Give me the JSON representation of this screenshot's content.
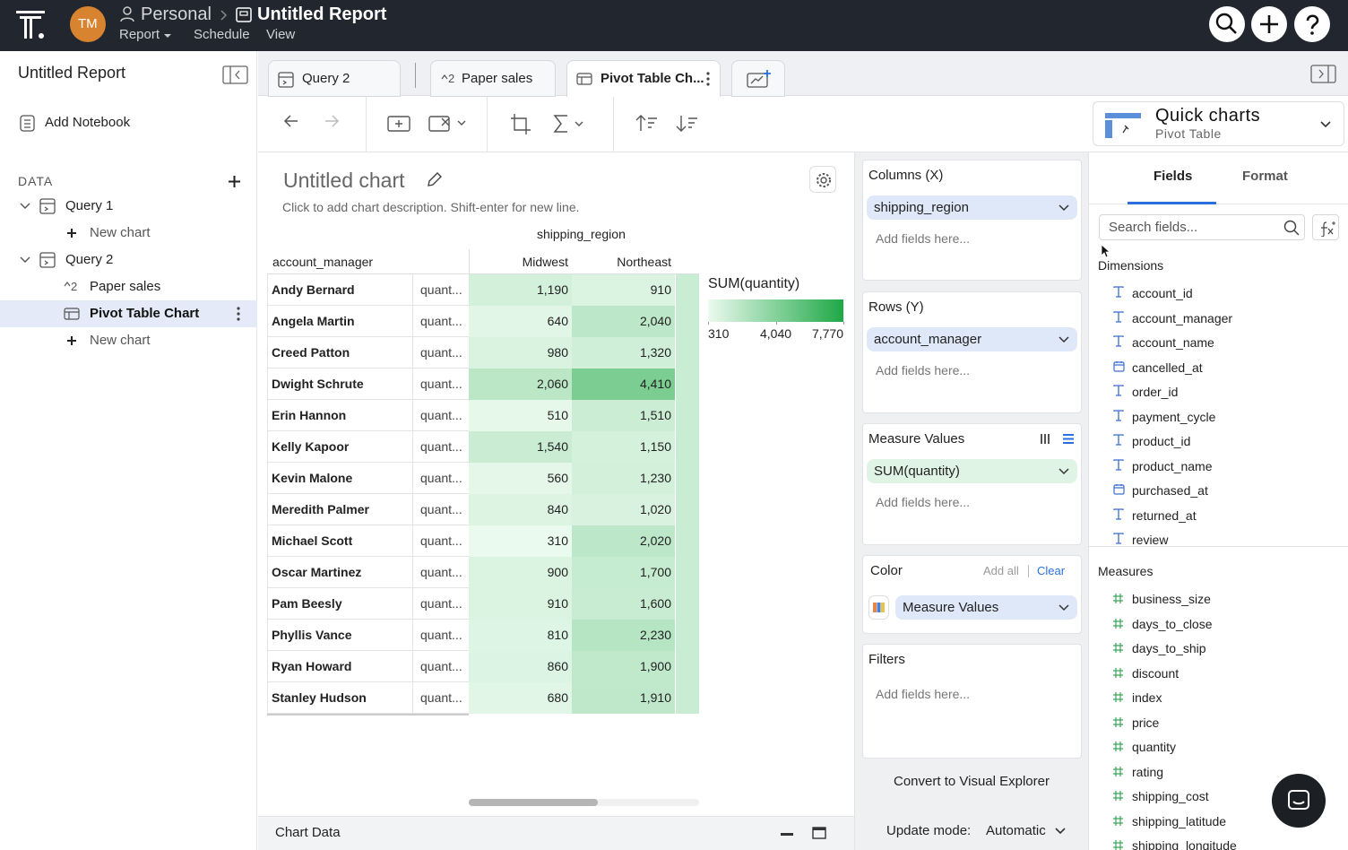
{
  "topbar": {
    "avatar": "TM",
    "workspace": "Personal",
    "report_title": "Untitled Report",
    "menu": [
      "Report",
      "Schedule",
      "View"
    ]
  },
  "sidebar": {
    "title": "Untitled Report",
    "add_notebook": "Add Notebook",
    "data_heading": "DATA",
    "selected": [
      1,
      1
    ],
    "queries": [
      {
        "name": "Query 1",
        "items": [
          {
            "label": "New chart",
            "icon": "plus"
          }
        ]
      },
      {
        "name": "Query 2",
        "items": [
          {
            "label": "Paper sales",
            "icon": "version",
            "badge": "2"
          },
          {
            "label": "Pivot Table Chart",
            "icon": "table"
          },
          {
            "label": "New chart",
            "icon": "plus"
          }
        ]
      }
    ]
  },
  "tabs": [
    {
      "label": "Query 2",
      "icon": "query"
    },
    {
      "label": "Paper sales",
      "icon": "version",
      "badge": "2"
    },
    {
      "label": "Pivot Table Ch...",
      "icon": "table",
      "active": true
    }
  ],
  "quick_charts": {
    "title": "Quick charts",
    "subtitle": "Pivot Table"
  },
  "chart": {
    "title": "Untitled chart",
    "description": "Click to add chart description. Shift-enter for new line.",
    "column_header": "shipping_region",
    "row_header": "account_manager",
    "columns": [
      "Midwest",
      "Northeast"
    ],
    "measure_label": "quant...",
    "rows": [
      "Andy Bernard",
      "Angela Martin",
      "Creed Patton",
      "Dwight Schrute",
      "Erin Hannon",
      "Kelly Kapoor",
      "Kevin Malone",
      "Meredith Palmer",
      "Michael Scott",
      "Oscar Martinez",
      "Pam Beesly",
      "Phyllis Vance",
      "Ryan Howard",
      "Stanley Hudson"
    ],
    "values": [
      [
        1190,
        910
      ],
      [
        640,
        2040
      ],
      [
        980,
        1320
      ],
      [
        2060,
        4410
      ],
      [
        510,
        1510
      ],
      [
        1540,
        1150
      ],
      [
        560,
        1230
      ],
      [
        840,
        1020
      ],
      [
        310,
        2020
      ],
      [
        900,
        1700
      ],
      [
        910,
        1600
      ],
      [
        810,
        2230
      ],
      [
        860,
        1900
      ],
      [
        680,
        1910
      ]
    ],
    "value_labels": [
      [
        "1,190",
        "910"
      ],
      [
        "640",
        "2,040"
      ],
      [
        "980",
        "1,320"
      ],
      [
        "2,060",
        "4,410"
      ],
      [
        "510",
        "1,510"
      ],
      [
        "1,540",
        "1,150"
      ],
      [
        "560",
        "1,230"
      ],
      [
        "840",
        "1,020"
      ],
      [
        "310",
        "2,020"
      ],
      [
        "900",
        "1,700"
      ],
      [
        "910",
        "1,600"
      ],
      [
        "810",
        "2,230"
      ],
      [
        "860",
        "1,900"
      ],
      [
        "680",
        "1,910"
      ]
    ],
    "legend": {
      "title": "SUM(quantity)",
      "ticks": [
        310,
        {
          "value": 4040,
          "label": "4,040"
        },
        {
          "value": 7770,
          "label": "7,770"
        }
      ],
      "colors": [
        "#ebfaef",
        "#1fa846"
      ]
    }
  },
  "chart_data_footer": "Chart Data",
  "shelves": {
    "columns": {
      "title": "Columns (X)",
      "field": "shipping_region",
      "placeholder": "Add fields here..."
    },
    "rows": {
      "title": "Rows (Y)",
      "field": "account_manager",
      "placeholder": "Add fields here..."
    },
    "measure_values": {
      "title": "Measure Values",
      "field": "SUM(quantity)",
      "placeholder": "Add fields here..."
    },
    "color": {
      "title": "Color",
      "add_all": "Add all",
      "clear": "Clear",
      "field": "Measure Values"
    },
    "filters": {
      "title": "Filters",
      "placeholder": "Add fields here..."
    },
    "convert": "Convert to Visual Explorer",
    "update_mode_label": "Update mode:",
    "update_mode": "Automatic"
  },
  "fields": {
    "tabs": [
      "Fields",
      "Format"
    ],
    "search_placeholder": "Search fields...",
    "dimensions_heading": "Dimensions",
    "dimensions": [
      {
        "name": "account_id",
        "type": "text"
      },
      {
        "name": "account_manager",
        "type": "text"
      },
      {
        "name": "account_name",
        "type": "text"
      },
      {
        "name": "cancelled_at",
        "type": "date"
      },
      {
        "name": "order_id",
        "type": "text"
      },
      {
        "name": "payment_cycle",
        "type": "text"
      },
      {
        "name": "product_id",
        "type": "text"
      },
      {
        "name": "product_name",
        "type": "text"
      },
      {
        "name": "purchased_at",
        "type": "date"
      },
      {
        "name": "returned_at",
        "type": "text"
      },
      {
        "name": "review",
        "type": "text"
      }
    ],
    "measures_heading": "Measures",
    "measures": [
      "business_size",
      "days_to_close",
      "days_to_ship",
      "discount",
      "index",
      "price",
      "quantity",
      "rating",
      "shipping_cost",
      "shipping_latitude",
      "shipping_longitude"
    ]
  }
}
